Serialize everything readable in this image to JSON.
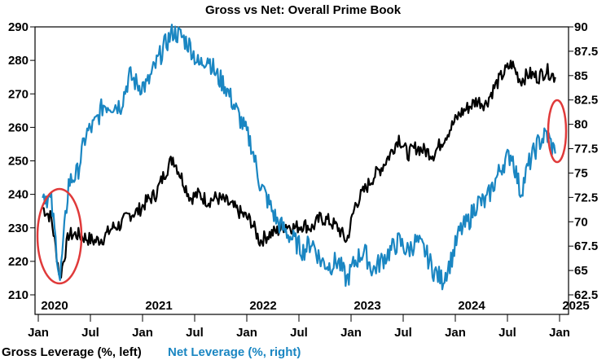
{
  "chart_data": {
    "type": "line",
    "title": "Gross vs Net: Overall Prime Book",
    "x": [
      "2020-01",
      "2020-02",
      "2020-03",
      "2020-04",
      "2020-05",
      "2020-06",
      "2020-07",
      "2020-08",
      "2020-09",
      "2020-10",
      "2020-11",
      "2020-12",
      "2021-01",
      "2021-02",
      "2021-03",
      "2021-04",
      "2021-05",
      "2021-06",
      "2021-07",
      "2021-08",
      "2021-09",
      "2021-10",
      "2021-11",
      "2021-12",
      "2022-01",
      "2022-02",
      "2022-03",
      "2022-04",
      "2022-05",
      "2022-06",
      "2022-07",
      "2022-08",
      "2022-09",
      "2022-10",
      "2022-11",
      "2022-12",
      "2023-01",
      "2023-02",
      "2023-03",
      "2023-04",
      "2023-05",
      "2023-06",
      "2023-07",
      "2023-08",
      "2023-09",
      "2023-10",
      "2023-11",
      "2023-12",
      "2024-01",
      "2024-02",
      "2024-03",
      "2024-04",
      "2024-05",
      "2024-06",
      "2024-07",
      "2024-08",
      "2024-09",
      "2024-10",
      "2024-11",
      "2024-12"
    ],
    "series": [
      {
        "name": "Gross Leverage (%, left)",
        "axis": "left",
        "color": "#000000",
        "values": [
          236,
          233,
          215,
          228,
          228,
          227,
          226,
          227,
          230,
          231,
          234,
          235,
          238,
          240,
          246,
          251,
          245,
          239,
          240,
          238,
          239,
          238,
          236,
          234,
          232,
          226,
          228,
          229,
          231,
          230,
          231,
          230,
          233,
          232,
          230,
          226,
          237,
          241,
          245,
          248,
          252,
          257,
          252,
          254,
          253,
          252,
          256,
          260,
          264,
          266,
          268,
          267,
          272,
          276,
          279,
          274,
          276,
          275,
          277,
          275
        ]
      },
      {
        "name": "Net Leverage (%, right)",
        "axis": "right",
        "color": "#1a86c2",
        "values": [
          73,
          72,
          64,
          74,
          75,
          79,
          80,
          82,
          82,
          82,
          85,
          84,
          84,
          86,
          88,
          89.5,
          89,
          88,
          86,
          87,
          85,
          84,
          82,
          80,
          78,
          74,
          72,
          70,
          69,
          68,
          67,
          68,
          66,
          65.5,
          66,
          64,
          66,
          67,
          65,
          66,
          67,
          68,
          67,
          68,
          67,
          65,
          64,
          66,
          69,
          70,
          72,
          72,
          74,
          76,
          77,
          73,
          76,
          78,
          79,
          77
        ]
      }
    ],
    "left_axis": {
      "ylim": [
        210,
        290
      ],
      "ticks": [
        "210",
        "220",
        "230",
        "240",
        "250",
        "260",
        "270",
        "280",
        "290"
      ]
    },
    "right_axis": {
      "ylim": [
        62.5,
        90
      ],
      "ticks": [
        "62.5",
        "65",
        "67.5",
        "70",
        "72.5",
        "75",
        "77.5",
        "80",
        "82.5",
        "85",
        "87.5",
        "90"
      ]
    },
    "x_month_ticks": [
      "Jan",
      "Jul",
      "Jan",
      "Jul",
      "Jan",
      "Jul",
      "Jan",
      "Jul",
      "Jan",
      "Jul",
      "Jan"
    ],
    "x_year_labels": [
      "2020",
      "2021",
      "2022",
      "2023",
      "2024",
      "2025"
    ],
    "legend": {
      "placement": "bottom-left",
      "entries": [
        "Gross Leverage (%, left)",
        "Net Leverage (%, right)"
      ]
    },
    "annotations": [
      "red ellipse around Mar 2020 dip",
      "red ellipse around late 2024 net leverage"
    ],
    "accent": "#e03a3a"
  }
}
